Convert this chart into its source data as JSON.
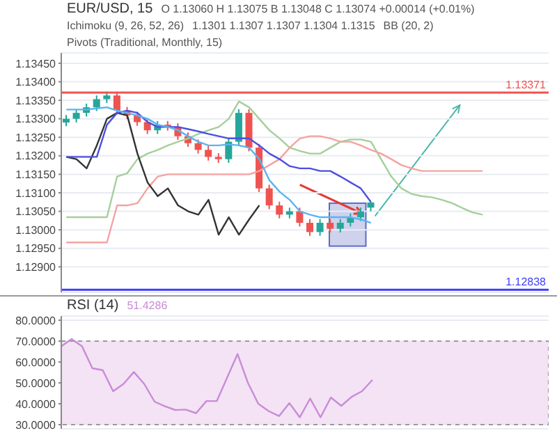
{
  "chart_data": [
    {
      "type": "candlestick",
      "title": "EUR/USD, 15",
      "subtitle": "O 1.13060 H 1.13075 B 1.13048 C 1.13074 +0.00014 (+0.01%)",
      "annotations": [
        "Ichimoku (9, 26, 52, 26)",
        "1.1301 1.1307 1.1307 1.1304 1.1315",
        "BB (20, 2)",
        "Pivots (Traditional, Monthly, 15)"
      ],
      "categories": [
        null,
        null,
        null,
        null,
        null,
        null,
        null,
        null,
        null,
        null,
        null,
        null,
        null,
        null,
        null,
        null,
        null,
        null,
        null,
        null,
        null,
        null,
        null,
        null,
        null,
        null,
        null,
        null,
        null,
        null,
        null,
        null,
        null,
        null,
        null,
        null,
        null,
        null,
        null,
        null,
        null,
        null,
        null,
        null,
        null,
        null,
        null,
        null
      ],
      "ohlc": [
        [
          1.1329,
          1.1331,
          1.1328,
          1.133
        ],
        [
          1.133,
          1.13326,
          1.1329,
          1.13316
        ],
        [
          1.13316,
          1.13341,
          1.13306,
          1.13331
        ],
        [
          1.13331,
          1.13363,
          1.13321,
          1.13353
        ],
        [
          1.13353,
          1.13373,
          1.13343,
          1.13363
        ],
        [
          1.13363,
          1.13373,
          1.13312,
          1.13322
        ],
        [
          1.13322,
          1.13332,
          1.13299,
          1.13309
        ],
        [
          1.13309,
          1.13319,
          1.13281,
          1.13291
        ],
        [
          1.13291,
          1.13301,
          1.13259,
          1.13269
        ],
        [
          1.13269,
          1.13294,
          1.13259,
          1.13284
        ],
        [
          1.13284,
          1.13294,
          1.13268,
          1.13278
        ],
        [
          1.13278,
          1.13288,
          1.13243,
          1.13253
        ],
        [
          1.13253,
          1.13263,
          1.13224,
          1.13234
        ],
        [
          1.13234,
          1.13244,
          1.13206,
          1.13216
        ],
        [
          1.13216,
          1.13226,
          1.13187,
          1.13197
        ],
        [
          1.13197,
          1.13207,
          1.13181,
          1.13191
        ],
        [
          1.13191,
          1.13248,
          1.13181,
          1.13238
        ],
        [
          1.13238,
          1.13326,
          1.13228,
          1.13316
        ],
        [
          1.13316,
          1.13326,
          1.13212,
          1.13222
        ],
        [
          1.13222,
          1.13232,
          1.13102,
          1.13112
        ],
        [
          1.13112,
          1.13122,
          1.13056,
          1.13066
        ],
        [
          1.13066,
          1.13076,
          1.13031,
          1.13041
        ],
        [
          1.13041,
          1.1306,
          1.13031,
          1.1305
        ],
        [
          1.1305,
          1.1306,
          1.13009,
          1.13019
        ],
        [
          1.13019,
          1.13029,
          1.12984,
          1.12994
        ],
        [
          1.12994,
          1.13029,
          1.12984,
          1.13019
        ],
        [
          1.13019,
          1.13029,
          1.12993,
          1.13003
        ],
        [
          1.13003,
          1.13029,
          1.12993,
          1.13019
        ],
        [
          1.13019,
          1.13044,
          1.13009,
          1.13034
        ],
        [
          1.13034,
          1.1306,
          1.13024,
          1.1305
        ],
        [
          1.1306,
          1.13075,
          1.1305,
          1.13074
        ],
        null,
        null,
        null,
        null,
        null,
        null,
        null,
        null,
        null,
        null,
        null,
        null,
        null,
        null,
        null,
        null,
        null
      ],
      "colors": [
        "#26a69a",
        "#26a69a",
        "#26a69a",
        "#26a69a",
        "#26a69a",
        "#ef5350",
        "#ef5350",
        "#ef5350",
        "#ef5350",
        "#26a69a",
        "#ef5350",
        "#ef5350",
        "#ef5350",
        "#ef5350",
        "#ef5350",
        "#ef5350",
        "#26a69a",
        "#26a69a",
        "#ef5350",
        "#ef5350",
        "#ef5350",
        "#ef5350",
        "#26a69a",
        "#ef5350",
        "#ef5350",
        "#26a69a",
        "#ef5350",
        "#26a69a",
        "#26a69a",
        "#26a69a",
        "#26a69a",
        null,
        null,
        null,
        null,
        null,
        null,
        null,
        null,
        null,
        null,
        null,
        null,
        null,
        null,
        null,
        null,
        null
      ],
      "series": [
        {
          "type": "line",
          "color": "#a5cf9a",
          "values": [
            1.13034,
            1.13034,
            1.13034,
            1.13034,
            1.13034,
            1.13144,
            1.13153,
            1.13191,
            1.13206,
            1.13216,
            1.13228,
            1.13238,
            1.13247,
            1.13259,
            1.13269,
            1.13278,
            1.133,
            1.13347,
            1.13331,
            1.133,
            1.13269,
            1.13247,
            1.13222,
            1.13213,
            1.13206,
            1.13206,
            1.13222,
            1.13238,
            1.13244,
            1.13244,
            1.13238,
            1.13191,
            1.13144,
            1.13112,
            1.13097,
            1.13091,
            1.13088,
            1.13081,
            1.13072,
            1.13059,
            1.13047,
            1.13041,
            null,
            null,
            null,
            null,
            null,
            null
          ]
        },
        {
          "type": "line",
          "color": "#f4a3a0",
          "values": [
            1.12966,
            1.12966,
            1.12966,
            1.12966,
            1.12966,
            1.13066,
            1.13066,
            1.13072,
            1.13112,
            1.13144,
            1.1315,
            1.1315,
            1.1315,
            1.1315,
            1.1315,
            1.1315,
            1.1315,
            1.1315,
            1.1315,
            1.13159,
            1.13175,
            1.13191,
            1.13222,
            1.13247,
            1.13253,
            1.13253,
            1.13247,
            1.13238,
            1.13238,
            1.13228,
            1.13216,
            1.13206,
            1.13191,
            1.13175,
            1.13166,
            1.13159,
            1.13159,
            1.13159,
            1.13159,
            1.13159,
            1.13159,
            1.13159,
            null,
            null,
            null,
            null,
            null,
            null
          ]
        },
        {
          "type": "line",
          "color": "#333333",
          "values": [
            1.13197,
            1.13191,
            1.13166,
            1.13228,
            1.133,
            1.13316,
            1.13309,
            1.13206,
            1.13128,
            1.13091,
            1.13112,
            1.13066,
            1.1305,
            1.13041,
            1.13081,
            1.12987,
            1.13034,
            1.12987,
            1.13028,
            1.13066,
            null,
            null,
            null,
            null,
            null,
            null,
            null,
            null,
            null,
            null,
            null,
            null,
            null,
            null,
            null,
            null,
            null,
            null,
            null,
            null,
            null,
            null,
            null,
            null,
            null,
            null,
            null,
            null
          ]
        },
        {
          "type": "line",
          "color": "#4d4fe0",
          "values": [
            1.13197,
            1.13197,
            1.13197,
            1.13197,
            1.13284,
            1.13316,
            1.13322,
            1.13316,
            1.13291,
            1.13278,
            1.13278,
            1.13278,
            1.13272,
            1.13266,
            1.13259,
            1.13253,
            1.13247,
            1.13247,
            1.13247,
            1.13228,
            1.13206,
            1.13191,
            1.13172,
            1.13166,
            1.13166,
            1.13159,
            1.13159,
            1.13144,
            1.13128,
            1.13112,
            1.13075,
            null,
            null,
            null,
            null,
            null,
            null,
            null,
            null,
            null,
            null,
            null,
            null,
            null,
            null,
            null,
            null,
            null
          ]
        },
        {
          "type": "line",
          "color": "#5ab4f0",
          "values": [
            1.13325,
            1.13325,
            1.13325,
            1.13328,
            1.13331,
            1.13322,
            1.13316,
            1.13309,
            1.133,
            1.13284,
            1.13278,
            1.13269,
            1.13253,
            1.13238,
            1.13228,
            1.13228,
            1.13231,
            1.13228,
            1.13222,
            1.13191,
            1.13134,
            1.13103,
            1.13081,
            1.1305,
            1.13041,
            1.13034,
            1.13034,
            1.13034,
            1.13034,
            1.13028,
            1.13019,
            null,
            null,
            null,
            null,
            null,
            null,
            null,
            null,
            null,
            null,
            null,
            null,
            null,
            null,
            null,
            null,
            null
          ]
        }
      ],
      "ylim": [
        1.12831,
        1.13478
      ],
      "yticks": [
        {
          "value": 1.129,
          "label": "1.12900"
        },
        {
          "value": 1.1295,
          "label": "1.12950"
        },
        {
          "value": 1.13,
          "label": "1.13000"
        },
        {
          "value": 1.1305,
          "label": "1.13050"
        },
        {
          "value": 1.131,
          "label": "1.13100"
        },
        {
          "value": 1.1315,
          "label": "1.13150"
        },
        {
          "value": 1.132,
          "label": "1.13200"
        },
        {
          "value": 1.1325,
          "label": "1.13250"
        },
        {
          "value": 1.133,
          "label": "1.13300"
        },
        {
          "value": 1.1335,
          "label": "1.13350"
        },
        {
          "value": 1.134,
          "label": "1.13400"
        },
        {
          "value": 1.1345,
          "label": "1.13450"
        }
      ],
      "ref_lines": [
        {
          "axis": "y",
          "value": 1.13371,
          "label": "1.13371",
          "color": "#ef5350"
        },
        {
          "axis": "y",
          "value": 1.12838,
          "label": "1.12838",
          "color": "#3d3dff"
        }
      ],
      "grid": "y",
      "tick_labels": "y"
    },
    {
      "type": "line",
      "title": "RSI (14)",
      "annotations": [
        "51.4286"
      ],
      "categories": [
        null,
        null,
        null,
        null,
        null,
        null,
        null,
        null,
        null,
        null,
        null,
        null,
        null,
        null,
        null,
        null,
        null,
        null,
        null,
        null,
        null,
        null,
        null,
        null,
        null,
        null,
        null,
        null,
        null,
        null,
        null,
        null,
        null,
        null,
        null,
        null,
        null,
        null,
        null,
        null,
        null,
        null,
        null,
        null,
        null,
        null,
        null,
        null
      ],
      "series": [
        {
          "color": "#c98bd6",
          "values": [
            67.5,
            71.0,
            67.5,
            57,
            56.1,
            46,
            49.5,
            55.2,
            49.5,
            41,
            38.8,
            37,
            37.2,
            35.5,
            41.3,
            41.3,
            52.6,
            63.8,
            50,
            40,
            36.5,
            34.1,
            40.3,
            33.5,
            42.5,
            33.5,
            43,
            39,
            43.3,
            46,
            51.4,
            null,
            null,
            null,
            null,
            null,
            null,
            null,
            null,
            null,
            null,
            null,
            null,
            null,
            null,
            null,
            null,
            null
          ]
        }
      ],
      "ylim": [
        28,
        82
      ],
      "yticks": [
        {
          "value": 30,
          "label": "30.0000"
        },
        {
          "value": 40,
          "label": "40.0000"
        },
        {
          "value": 50,
          "label": "50.0000"
        },
        {
          "value": 60,
          "label": "60.0000"
        },
        {
          "value": 70,
          "label": "70.0000"
        },
        {
          "value": 80,
          "label": "80.0000"
        }
      ],
      "bands": [
        {
          "axis": "y",
          "from": 30,
          "to": 70,
          "color": "#f3e3f5"
        }
      ],
      "grid": "y",
      "tick_labels": "y"
    }
  ]
}
